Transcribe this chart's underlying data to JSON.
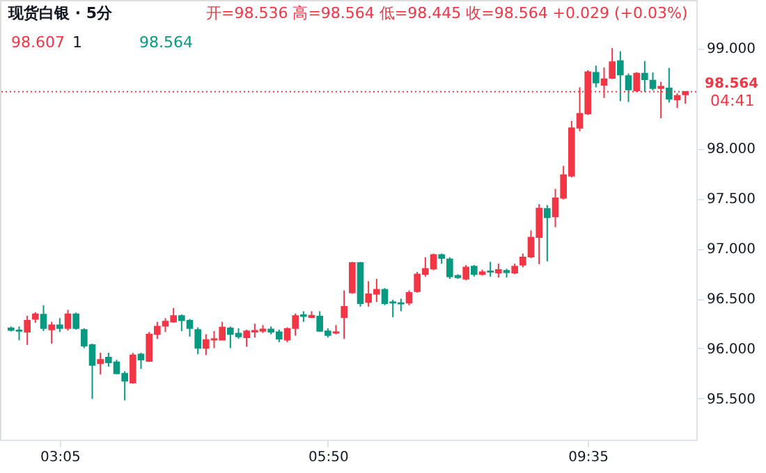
{
  "chart_data": {
    "type": "candlestick",
    "title": "现货白银 · 5分",
    "subtitle": "开=98.536 高=98.564 低=98.445 收=98.564 +0.029 (+0.03%)",
    "annotations": [
      "98.607",
      "1",
      "98.564",
      "04:41"
    ],
    "categories": [
      null,
      null,
      null,
      null,
      null,
      null,
      "03:05",
      null,
      null,
      null,
      null,
      null,
      null,
      null,
      null,
      null,
      null,
      null,
      null,
      null,
      null,
      null,
      null,
      null,
      null,
      null,
      null,
      null,
      null,
      null,
      null,
      null,
      null,
      null,
      null,
      null,
      null,
      null,
      null,
      "05:50",
      null,
      null,
      null,
      null,
      null,
      null,
      null,
      null,
      null,
      null,
      null,
      null,
      null,
      null,
      null,
      null,
      null,
      null,
      null,
      null,
      null,
      null,
      null,
      null,
      null,
      null,
      null,
      null,
      null,
      null,
      null,
      "09:35",
      null,
      null,
      null,
      null,
      null,
      null,
      null,
      null,
      null,
      null,
      null,
      null
    ],
    "ohlc": [
      [
        96.202,
        96.22,
        96.17,
        96.183
      ],
      [
        96.183,
        96.22,
        96.082,
        96.174
      ],
      [
        96.165,
        96.326,
        96.036,
        96.28
      ],
      [
        96.294,
        96.363,
        96.257,
        96.344
      ],
      [
        96.34,
        96.432,
        96.174,
        96.202
      ],
      [
        96.188,
        96.266,
        96.049,
        96.234
      ],
      [
        96.234,
        96.303,
        96.165,
        96.202
      ],
      [
        96.202,
        96.386,
        96.178,
        96.344
      ],
      [
        96.344,
        96.358,
        96.188,
        96.202
      ],
      [
        96.188,
        96.202,
        96.003,
        96.026
      ],
      [
        96.036,
        96.049,
        95.496,
        95.833
      ],
      [
        95.851,
        95.957,
        95.741,
        95.888
      ],
      [
        95.911,
        95.957,
        95.819,
        95.86
      ],
      [
        95.865,
        95.888,
        95.741,
        95.75
      ],
      [
        95.75,
        95.773,
        95.482,
        95.676
      ],
      [
        95.658,
        95.957,
        95.648,
        95.934
      ],
      [
        95.943,
        95.957,
        95.796,
        95.888
      ],
      [
        95.874,
        96.165,
        95.865,
        96.142
      ],
      [
        96.142,
        96.266,
        96.096,
        96.22
      ],
      [
        96.225,
        96.303,
        96.165,
        96.271
      ],
      [
        96.266,
        96.404,
        96.257,
        96.326
      ],
      [
        96.326,
        96.34,
        96.174,
        96.28
      ],
      [
        96.28,
        96.294,
        96.119,
        96.202
      ],
      [
        96.188,
        96.211,
        95.943,
        96.003
      ],
      [
        96.003,
        96.142,
        95.934,
        96.086
      ],
      [
        96.086,
        96.174,
        96.003,
        96.096
      ],
      [
        96.086,
        96.266,
        96.082,
        96.211
      ],
      [
        96.202,
        96.22,
        96.003,
        96.142
      ],
      [
        96.151,
        96.202,
        96.096,
        96.119
      ],
      [
        96.109,
        96.188,
        96.017,
        96.174
      ],
      [
        96.165,
        96.248,
        96.109,
        96.178
      ],
      [
        96.174,
        96.234,
        96.155,
        96.192
      ],
      [
        96.192,
        96.22,
        96.141,
        96.165
      ],
      [
        96.165,
        96.188,
        96.063,
        96.095
      ],
      [
        96.086,
        96.211,
        96.063,
        96.197
      ],
      [
        96.201,
        96.349,
        96.128,
        96.326
      ],
      [
        96.335,
        96.372,
        96.266,
        96.321
      ],
      [
        96.312,
        96.372,
        96.303,
        96.33
      ],
      [
        96.321,
        96.372,
        96.165,
        96.174
      ],
      [
        96.174,
        96.201,
        96.109,
        96.132
      ],
      [
        96.155,
        96.234,
        96.141,
        96.165
      ],
      [
        96.312,
        96.58,
        96.095,
        96.418
      ],
      [
        96.557,
        96.865,
        96.547,
        96.856
      ],
      [
        96.856,
        96.865,
        96.418,
        96.45
      ],
      [
        96.463,
        96.672,
        96.418,
        96.543
      ],
      [
        96.543,
        96.695,
        96.464,
        96.589
      ],
      [
        96.589,
        96.603,
        96.432,
        96.45
      ],
      [
        96.464,
        96.487,
        96.312,
        96.455
      ],
      [
        96.455,
        96.497,
        96.372,
        96.446
      ],
      [
        96.455,
        96.58,
        96.432,
        96.557
      ],
      [
        96.57,
        96.764,
        96.557,
        96.741
      ],
      [
        96.741,
        96.911,
        96.718,
        96.796
      ],
      [
        96.796,
        96.948,
        96.782,
        96.935
      ],
      [
        96.935,
        96.948,
        96.847,
        96.902
      ],
      [
        96.893,
        96.911,
        96.695,
        96.718
      ],
      [
        96.727,
        96.741,
        96.695,
        96.709
      ],
      [
        96.695,
        96.833,
        96.681,
        96.81
      ],
      [
        96.819,
        96.833,
        96.718,
        96.741
      ],
      [
        96.741,
        96.787,
        96.727,
        96.764
      ],
      [
        96.773,
        96.865,
        96.718,
        96.764
      ],
      [
        96.755,
        96.847,
        96.709,
        96.787
      ],
      [
        96.778,
        96.796,
        96.709,
        96.76
      ],
      [
        96.755,
        96.847,
        96.741,
        96.819
      ],
      [
        96.833,
        96.948,
        96.81,
        96.911
      ],
      [
        96.916,
        97.179,
        96.902,
        97.11
      ],
      [
        97.11,
        97.442,
        96.842,
        97.4
      ],
      [
        97.396,
        97.432,
        96.87,
        97.308
      ],
      [
        97.317,
        97.594,
        97.211,
        97.502
      ],
      [
        97.502,
        97.824,
        97.488,
        97.732
      ],
      [
        97.723,
        98.272,
        97.709,
        98.202
      ],
      [
        98.202,
        98.608,
        98.17,
        98.345
      ],
      [
        98.345,
        98.779,
        98.332,
        98.76
      ],
      [
        98.756,
        98.825,
        98.608,
        98.654
      ],
      [
        98.631,
        98.806,
        98.502,
        98.691
      ],
      [
        98.7,
        99.0,
        98.691,
        98.862
      ],
      [
        98.871,
        98.968,
        98.47,
        98.733
      ],
      [
        98.723,
        98.746,
        98.461,
        98.585
      ],
      [
        98.576,
        98.76,
        98.562,
        98.746
      ],
      [
        98.746,
        98.871,
        98.562,
        98.686
      ],
      [
        98.677,
        98.756,
        98.576,
        98.599
      ],
      [
        98.599,
        98.663,
        98.299,
        98.617
      ],
      [
        98.599,
        98.802,
        98.456,
        98.493
      ],
      [
        98.484,
        98.548,
        98.401,
        98.525
      ],
      [
        98.536,
        98.564,
        98.445,
        98.564
      ]
    ],
    "colors": [
      "#089981",
      "#089981",
      "#f23645",
      "#f23645",
      "#089981",
      "#f23645",
      "#089981",
      "#f23645",
      "#089981",
      "#089981",
      "#089981",
      "#f23645",
      "#089981",
      "#089981",
      "#089981",
      "#f23645",
      "#089981",
      "#f23645",
      "#f23645",
      "#f23645",
      "#f23645",
      "#089981",
      "#089981",
      "#089981",
      "#f23645",
      "#f23645",
      "#f23645",
      "#089981",
      "#089981",
      "#f23645",
      "#f23645",
      "#f23645",
      "#089981",
      "#089981",
      "#f23645",
      "#f23645",
      "#089981",
      "#f23645",
      "#089981",
      "#089981",
      "#f23645",
      "#f23645",
      "#f23645",
      "#089981",
      "#f23645",
      "#f23645",
      "#089981",
      "#089981",
      "#089981",
      "#f23645",
      "#f23645",
      "#f23645",
      "#f23645",
      "#089981",
      "#089981",
      "#089981",
      "#f23645",
      "#089981",
      "#f23645",
      "#089981",
      "#f23645",
      "#089981",
      "#f23645",
      "#f23645",
      "#f23645",
      "#f23645",
      "#089981",
      "#f23645",
      "#f23645",
      "#f23645",
      "#f23645",
      "#f23645",
      "#089981",
      "#f23645",
      "#f23645",
      "#089981",
      "#089981",
      "#f23645",
      "#089981",
      "#089981",
      "#f23645",
      "#089981",
      "#f23645",
      "#f23645"
    ],
    "ylim": [
      95.09,
      99.48
    ],
    "yticks": [
      {
        "value": 95.5,
        "label": "95.500"
      },
      {
        "value": 96.0,
        "label": "96.000"
      },
      {
        "value": 96.5,
        "label": "96.500"
      },
      {
        "value": 97.0,
        "label": "97.000"
      },
      {
        "value": 97.5,
        "label": "97.500"
      },
      {
        "value": 98.0,
        "label": "98.000"
      },
      {
        "value": 99.0,
        "label": "99.000"
      }
    ],
    "ref_lines": [
      {
        "axis": "y",
        "value": 98.564,
        "color": "#f23645",
        "line_style": "dotted"
      }
    ],
    "grid": false
  }
}
